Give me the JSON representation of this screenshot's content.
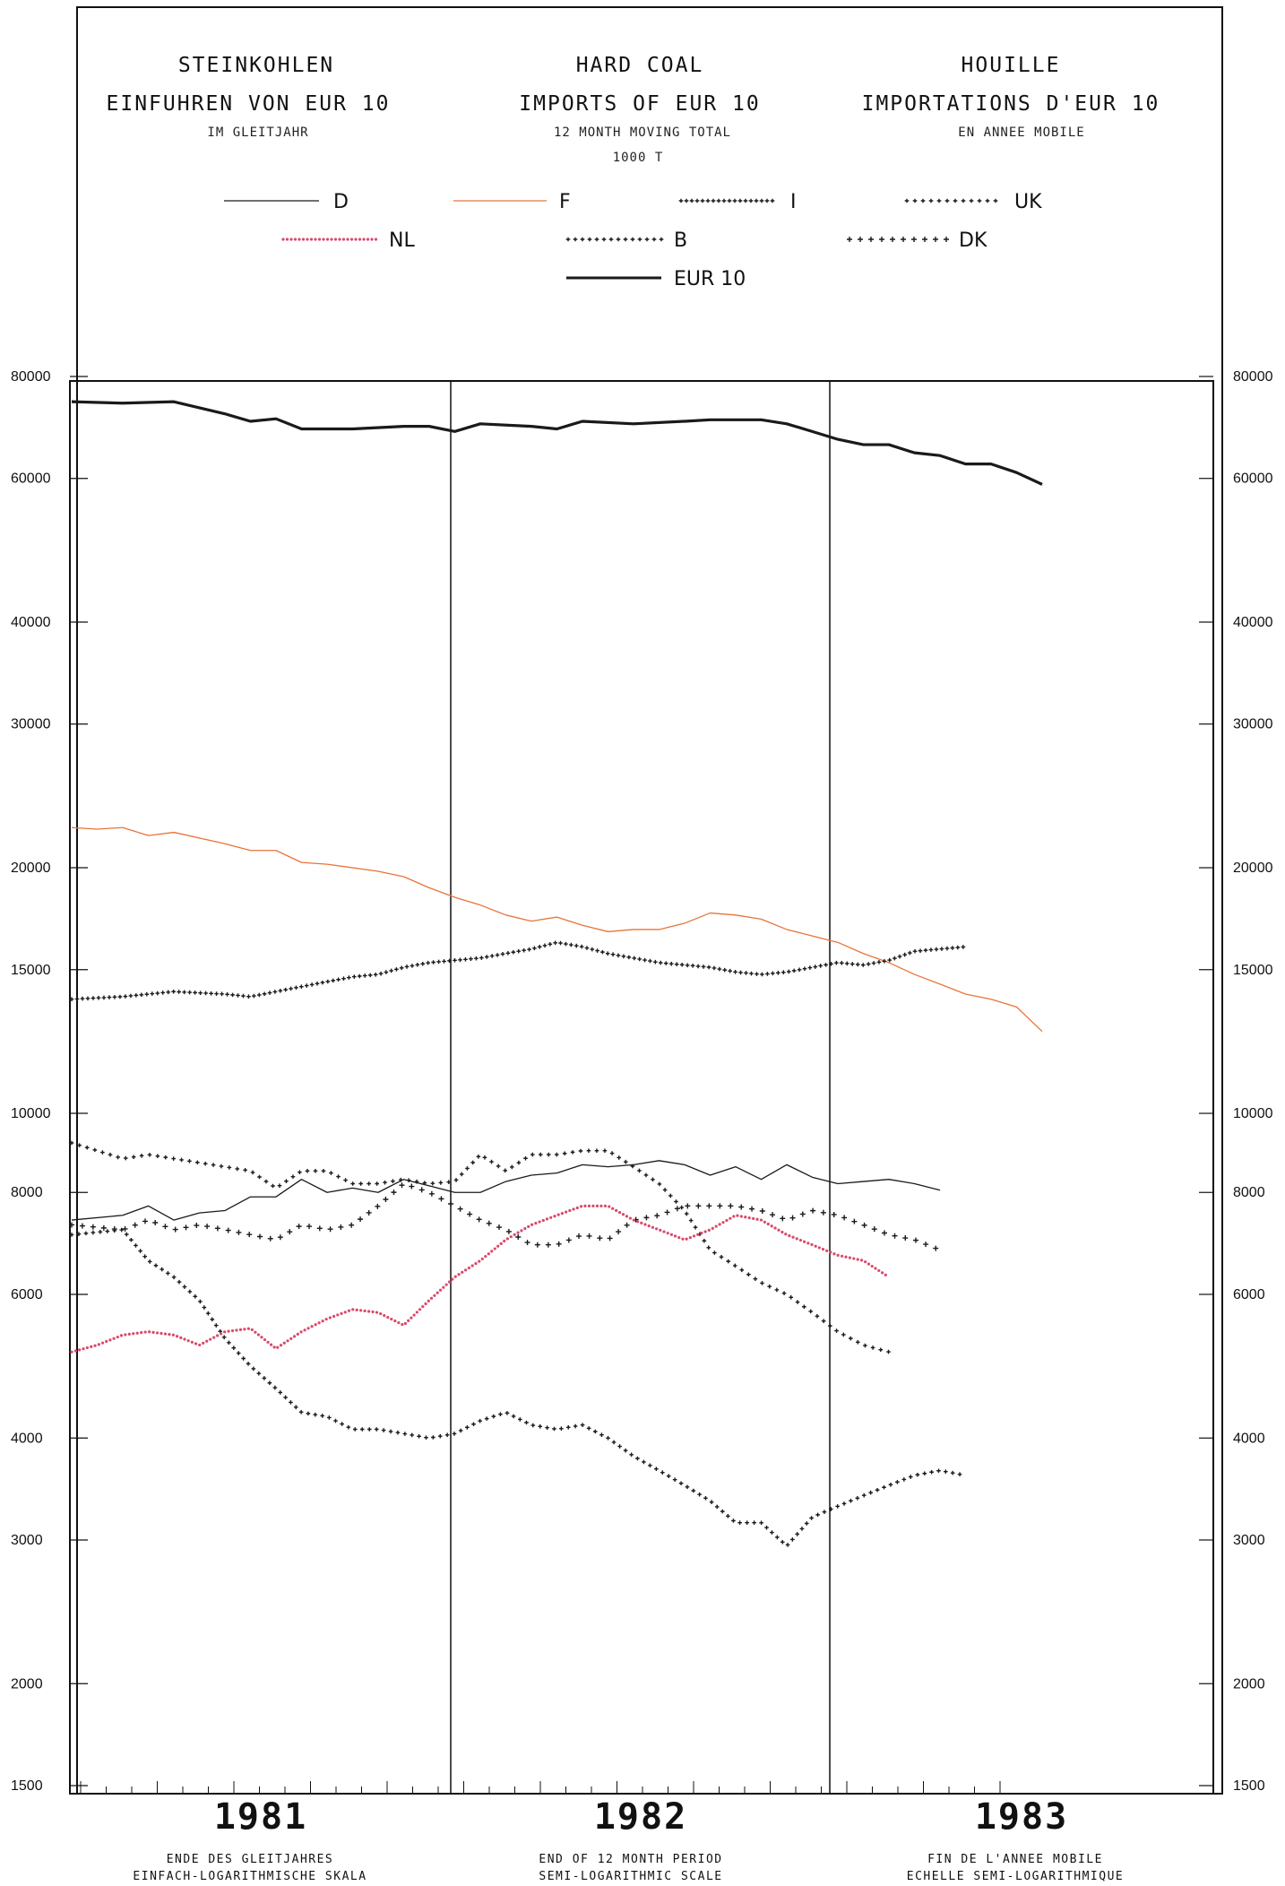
{
  "header": {
    "col1": {
      "title": "STEINKOHLEN",
      "line1": "EINFUHREN VON EUR 10",
      "line2": "IM GLEITJAHR"
    },
    "col2": {
      "title": "HARD COAL",
      "line1": "IMPORTS OF EUR 10",
      "line2": "12 MONTH MOVING TOTAL",
      "unit": "1000 T"
    },
    "col3": {
      "title": "HOUILLE",
      "line1": "IMPORTATIONS D'EUR 10",
      "line2": "EN ANNEE MOBILE"
    }
  },
  "footer": {
    "col1": {
      "line1": "ENDE DES GLEITJAHRES",
      "line2": "EINFACH-LOGARITHMISCHE SKALA"
    },
    "col2": {
      "line1": "END OF 12 MONTH PERIOD",
      "line2": "SEMI-LOGARITHMIC SCALE"
    },
    "col3": {
      "line1": "FIN DE L'ANNEE MOBILE",
      "line2": "ECHELLE SEMI-LOGARITHMIQUE"
    }
  },
  "colors": {
    "black": "#1a1a1a",
    "orange": "#e8743b",
    "red": "#d94a6a"
  },
  "chart_data": {
    "type": "line",
    "y_scale": "log",
    "ylim": [
      1500,
      80000
    ],
    "ytick_labels": [
      "80000",
      "60000",
      "40000",
      "30000",
      "20000",
      "15000",
      "10000",
      "8000",
      "6000",
      "4000",
      "3000",
      "2000",
      "1500"
    ],
    "ytick_values": [
      80000,
      60000,
      40000,
      30000,
      20000,
      15000,
      10000,
      8000,
      6000,
      4000,
      3000,
      2000,
      1500
    ],
    "x_unit": "month",
    "x_start": "1981-01",
    "x_end": "1983-12",
    "year_labels": [
      "1981",
      "1982",
      "1983"
    ],
    "legend": [
      "D",
      "F",
      "I",
      "UK",
      "NL",
      "B",
      "DK",
      "EUR 10"
    ],
    "series": [
      {
        "name": "EUR 10",
        "color": "#1a1a1a",
        "style": "solid-thick",
        "values": [
          [
            0,
            74500
          ],
          [
            2,
            74200
          ],
          [
            4,
            74500
          ],
          [
            6,
            72000
          ],
          [
            7,
            70500
          ],
          [
            8,
            71000
          ],
          [
            9,
            69000
          ],
          [
            11,
            69000
          ],
          [
            13,
            69500
          ],
          [
            14,
            69500
          ],
          [
            15,
            68500
          ],
          [
            16,
            70000
          ],
          [
            18,
            69500
          ],
          [
            19,
            69000
          ],
          [
            20,
            70500
          ],
          [
            22,
            70000
          ],
          [
            24,
            70500
          ],
          [
            25,
            70800
          ],
          [
            27,
            70800
          ],
          [
            28,
            70000
          ],
          [
            29,
            68500
          ],
          [
            30,
            67000
          ],
          [
            31,
            66000
          ],
          [
            32,
            66000
          ],
          [
            33,
            64500
          ],
          [
            34,
            64000
          ],
          [
            35,
            62500
          ],
          [
            36,
            62500
          ],
          [
            37,
            61000
          ],
          [
            38,
            59000
          ]
        ]
      },
      {
        "name": "F",
        "color": "#e8743b",
        "style": "solid-thin",
        "values": [
          [
            0,
            22400
          ],
          [
            1,
            22300
          ],
          [
            2,
            22400
          ],
          [
            3,
            21900
          ],
          [
            4,
            22100
          ],
          [
            6,
            21400
          ],
          [
            7,
            21000
          ],
          [
            8,
            21000
          ],
          [
            9,
            20300
          ],
          [
            10,
            20200
          ],
          [
            12,
            19800
          ],
          [
            13,
            19500
          ],
          [
            14,
            18900
          ],
          [
            15,
            18400
          ],
          [
            16,
            18000
          ],
          [
            17,
            17500
          ],
          [
            18,
            17200
          ],
          [
            19,
            17400
          ],
          [
            20,
            17000
          ],
          [
            21,
            16700
          ],
          [
            22,
            16800
          ],
          [
            23,
            16800
          ],
          [
            24,
            17100
          ],
          [
            25,
            17600
          ],
          [
            26,
            17500
          ],
          [
            27,
            17300
          ],
          [
            28,
            16800
          ],
          [
            29,
            16500
          ],
          [
            30,
            16200
          ],
          [
            31,
            15700
          ],
          [
            32,
            15300
          ],
          [
            33,
            14800
          ],
          [
            34,
            14400
          ],
          [
            35,
            14000
          ],
          [
            36,
            13800
          ],
          [
            37,
            13500
          ],
          [
            38,
            12600
          ]
        ]
      },
      {
        "name": "I",
        "color": "#1a1a1a",
        "style": "dense-crosses",
        "values": [
          [
            0,
            13800
          ],
          [
            2,
            13900
          ],
          [
            4,
            14100
          ],
          [
            6,
            14000
          ],
          [
            7,
            13900
          ],
          [
            8,
            14100
          ],
          [
            9,
            14300
          ],
          [
            10,
            14500
          ],
          [
            11,
            14700
          ],
          [
            12,
            14800
          ],
          [
            13,
            15100
          ],
          [
            14,
            15300
          ],
          [
            15,
            15400
          ],
          [
            16,
            15500
          ],
          [
            17,
            15700
          ],
          [
            18,
            15900
          ],
          [
            19,
            16200
          ],
          [
            20,
            16000
          ],
          [
            21,
            15700
          ],
          [
            22,
            15500
          ],
          [
            23,
            15300
          ],
          [
            24,
            15200
          ],
          [
            25,
            15100
          ],
          [
            26,
            14900
          ],
          [
            27,
            14800
          ],
          [
            28,
            14900
          ],
          [
            29,
            15100
          ],
          [
            30,
            15300
          ],
          [
            31,
            15200
          ],
          [
            32,
            15400
          ],
          [
            33,
            15800
          ],
          [
            34,
            15900
          ],
          [
            35,
            16000
          ]
        ]
      },
      {
        "name": "D",
        "color": "#1a1a1a",
        "style": "solid-thin",
        "values": [
          [
            0,
            7400
          ],
          [
            2,
            7500
          ],
          [
            3,
            7700
          ],
          [
            4,
            7400
          ],
          [
            5,
            7550
          ],
          [
            6,
            7600
          ],
          [
            7,
            7900
          ],
          [
            8,
            7900
          ],
          [
            9,
            8300
          ],
          [
            10,
            8000
          ],
          [
            11,
            8100
          ],
          [
            12,
            8000
          ],
          [
            13,
            8300
          ],
          [
            14,
            8150
          ],
          [
            15,
            8000
          ],
          [
            16,
            8000
          ],
          [
            17,
            8250
          ],
          [
            18,
            8400
          ],
          [
            19,
            8450
          ],
          [
            20,
            8650
          ],
          [
            21,
            8600
          ],
          [
            22,
            8650
          ],
          [
            23,
            8750
          ],
          [
            24,
            8650
          ],
          [
            25,
            8400
          ],
          [
            26,
            8600
          ],
          [
            27,
            8300
          ],
          [
            28,
            8650
          ],
          [
            29,
            8350
          ],
          [
            30,
            8200
          ],
          [
            31,
            8250
          ],
          [
            32,
            8300
          ],
          [
            33,
            8200
          ],
          [
            34,
            8050
          ]
        ]
      },
      {
        "name": "UK",
        "color": "#1a1a1a",
        "style": "crosses-pairs",
        "values": [
          [
            0,
            9200
          ],
          [
            1,
            9000
          ],
          [
            2,
            8800
          ],
          [
            3,
            8900
          ],
          [
            4,
            8800
          ],
          [
            5,
            8700
          ],
          [
            6,
            8600
          ],
          [
            7,
            8500
          ],
          [
            8,
            8100
          ],
          [
            9,
            8500
          ],
          [
            10,
            8500
          ],
          [
            11,
            8200
          ],
          [
            12,
            8200
          ],
          [
            13,
            8300
          ],
          [
            14,
            8200
          ],
          [
            15,
            8250
          ],
          [
            16,
            8900
          ],
          [
            17,
            8500
          ],
          [
            18,
            8900
          ],
          [
            19,
            8900
          ],
          [
            20,
            9000
          ],
          [
            21,
            9000
          ],
          [
            22,
            8600
          ],
          [
            23,
            8200
          ],
          [
            24,
            7600
          ],
          [
            25,
            6800
          ],
          [
            26,
            6500
          ],
          [
            27,
            6200
          ],
          [
            28,
            6000
          ],
          [
            29,
            5700
          ],
          [
            30,
            5400
          ],
          [
            31,
            5200
          ],
          [
            32,
            5100
          ]
        ]
      },
      {
        "name": "B",
        "color": "#1a1a1a",
        "style": "crosses-triples",
        "values": [
          [
            0,
            7100
          ],
          [
            2,
            7200
          ],
          [
            3,
            6600
          ],
          [
            4,
            6300
          ],
          [
            5,
            5900
          ],
          [
            6,
            5300
          ],
          [
            7,
            4900
          ],
          [
            8,
            4600
          ],
          [
            9,
            4300
          ],
          [
            10,
            4250
          ],
          [
            11,
            4100
          ],
          [
            12,
            4100
          ],
          [
            13,
            4050
          ],
          [
            14,
            4000
          ],
          [
            15,
            4050
          ],
          [
            16,
            4200
          ],
          [
            17,
            4300
          ],
          [
            18,
            4150
          ],
          [
            19,
            4100
          ],
          [
            20,
            4150
          ],
          [
            21,
            4000
          ],
          [
            22,
            3800
          ],
          [
            23,
            3650
          ],
          [
            24,
            3500
          ],
          [
            25,
            3350
          ],
          [
            26,
            3150
          ],
          [
            27,
            3150
          ],
          [
            28,
            2950
          ],
          [
            29,
            3200
          ],
          [
            30,
            3300
          ],
          [
            31,
            3400
          ],
          [
            32,
            3500
          ],
          [
            33,
            3600
          ],
          [
            34,
            3650
          ],
          [
            35,
            3600
          ]
        ]
      },
      {
        "name": "DK",
        "color": "#1a1a1a",
        "style": "sparse-crosses",
        "values": [
          [
            0,
            7300
          ],
          [
            2,
            7200
          ],
          [
            3,
            7400
          ],
          [
            4,
            7200
          ],
          [
            5,
            7300
          ],
          [
            6,
            7200
          ],
          [
            7,
            7100
          ],
          [
            8,
            7000
          ],
          [
            9,
            7300
          ],
          [
            10,
            7200
          ],
          [
            11,
            7300
          ],
          [
            12,
            7700
          ],
          [
            13,
            8200
          ],
          [
            14,
            8000
          ],
          [
            15,
            7700
          ],
          [
            16,
            7400
          ],
          [
            17,
            7200
          ],
          [
            18,
            6900
          ],
          [
            19,
            6900
          ],
          [
            20,
            7100
          ],
          [
            21,
            7000
          ],
          [
            22,
            7400
          ],
          [
            23,
            7500
          ],
          [
            24,
            7700
          ],
          [
            25,
            7700
          ],
          [
            26,
            7700
          ],
          [
            27,
            7600
          ],
          [
            28,
            7400
          ],
          [
            29,
            7600
          ],
          [
            30,
            7500
          ],
          [
            31,
            7300
          ],
          [
            32,
            7100
          ],
          [
            33,
            7000
          ],
          [
            34,
            6800
          ]
        ]
      },
      {
        "name": "NL",
        "color": "#d94a6a",
        "style": "dotted",
        "values": [
          [
            0,
            5100
          ],
          [
            1,
            5200
          ],
          [
            2,
            5350
          ],
          [
            3,
            5400
          ],
          [
            4,
            5350
          ],
          [
            5,
            5200
          ],
          [
            6,
            5400
          ],
          [
            7,
            5450
          ],
          [
            8,
            5150
          ],
          [
            9,
            5400
          ],
          [
            10,
            5600
          ],
          [
            11,
            5750
          ],
          [
            12,
            5700
          ],
          [
            13,
            5500
          ],
          [
            14,
            5900
          ],
          [
            15,
            6300
          ],
          [
            16,
            6600
          ],
          [
            17,
            7000
          ],
          [
            18,
            7300
          ],
          [
            19,
            7500
          ],
          [
            20,
            7700
          ],
          [
            21,
            7700
          ],
          [
            22,
            7400
          ],
          [
            23,
            7200
          ],
          [
            24,
            7000
          ],
          [
            25,
            7200
          ],
          [
            26,
            7500
          ],
          [
            27,
            7400
          ],
          [
            28,
            7100
          ],
          [
            29,
            6900
          ],
          [
            30,
            6700
          ],
          [
            31,
            6600
          ],
          [
            32,
            6300
          ]
        ]
      }
    ]
  }
}
